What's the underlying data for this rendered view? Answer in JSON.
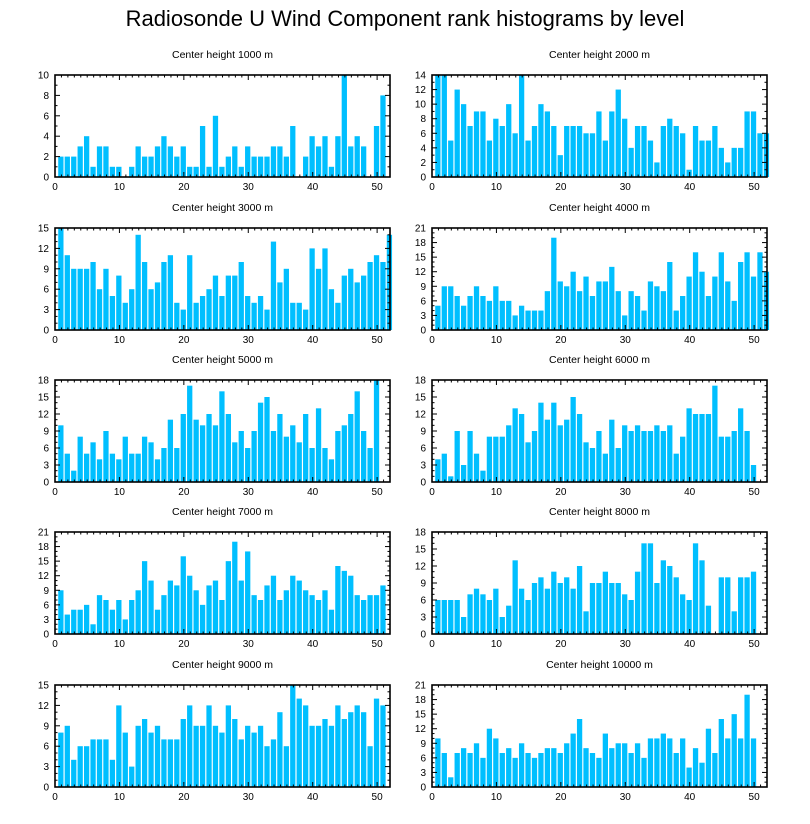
{
  "title": "Radiosonde U Wind Component rank histograms by level",
  "colors": {
    "bar": "#00bfff",
    "bar_stroke": "#ffffff",
    "axis": "#000000"
  },
  "chart_data": [
    {
      "type": "bar",
      "title": "Center height 1000 m",
      "x_start": 1,
      "xlim": [
        0,
        52
      ],
      "ylim": [
        0,
        10
      ],
      "xticks": [
        0,
        10,
        20,
        30,
        40,
        50
      ],
      "yticks": [
        0,
        2,
        4,
        6,
        8,
        10
      ],
      "values": [
        2,
        2,
        2,
        3,
        4,
        1,
        3,
        3,
        1,
        1,
        0,
        1,
        3,
        2,
        2,
        3,
        4,
        3,
        2,
        3,
        1,
        1,
        5,
        1,
        6,
        1,
        2,
        3,
        1,
        3,
        2,
        2,
        2,
        3,
        3,
        2,
        5,
        0,
        2,
        4,
        3,
        4,
        1,
        4,
        10,
        3,
        4,
        3,
        0,
        5,
        8
      ]
    },
    {
      "type": "bar",
      "title": "Center height 2000 m",
      "x_start": 1,
      "xlim": [
        0,
        52
      ],
      "ylim": [
        0,
        14
      ],
      "xticks": [
        0,
        10,
        20,
        30,
        40,
        50
      ],
      "yticks": [
        0,
        2,
        4,
        6,
        8,
        10,
        12,
        14
      ],
      "values": [
        14,
        14,
        5,
        12,
        10,
        7,
        9,
        9,
        5,
        8,
        7,
        10,
        6,
        14,
        5,
        7,
        10,
        9,
        7,
        3,
        7,
        7,
        7,
        6,
        6,
        9,
        5,
        9,
        12,
        8,
        4,
        7,
        7,
        5,
        2,
        7,
        8,
        7,
        6,
        1,
        7,
        5,
        5,
        7,
        4,
        2,
        4,
        4,
        9,
        9,
        6,
        6
      ]
    },
    {
      "type": "bar",
      "title": "Center height 3000 m",
      "x_start": 1,
      "xlim": [
        0,
        52
      ],
      "ylim": [
        0,
        15
      ],
      "xticks": [
        0,
        10,
        20,
        30,
        40,
        50
      ],
      "yticks": [
        0,
        3,
        6,
        9,
        12,
        15
      ],
      "values": [
        15,
        11,
        9,
        9,
        9,
        10,
        6,
        9,
        5,
        8,
        4,
        6,
        14,
        10,
        6,
        7,
        10,
        11,
        4,
        3,
        11,
        4,
        5,
        6,
        8,
        5,
        8,
        8,
        10,
        5,
        4,
        5,
        3,
        13,
        7,
        9,
        4,
        4,
        3,
        12,
        9,
        12,
        6,
        4,
        8,
        9,
        7,
        8,
        10,
        11,
        10,
        14
      ]
    },
    {
      "type": "bar",
      "title": "Center height 4000 m",
      "x_start": 1,
      "xlim": [
        0,
        52
      ],
      "ylim": [
        0,
        21
      ],
      "xticks": [
        0,
        10,
        20,
        30,
        40,
        50
      ],
      "yticks": [
        0,
        3,
        6,
        9,
        12,
        15,
        18,
        21
      ],
      "values": [
        5,
        9,
        9,
        7,
        5,
        7,
        9,
        7,
        6,
        9,
        6,
        6,
        3,
        5,
        4,
        4,
        4,
        8,
        19,
        10,
        9,
        12,
        8,
        11,
        7,
        10,
        10,
        13,
        8,
        3,
        8,
        7,
        4,
        10,
        9,
        8,
        14,
        4,
        7,
        11,
        16,
        12,
        7,
        11,
        16,
        10,
        6,
        14,
        16,
        11,
        16,
        12
      ]
    },
    {
      "type": "bar",
      "title": "Center height 5000 m",
      "x_start": 1,
      "xlim": [
        0,
        52
      ],
      "ylim": [
        0,
        18
      ],
      "xticks": [
        0,
        10,
        20,
        30,
        40,
        50
      ],
      "yticks": [
        0,
        3,
        6,
        9,
        12,
        15,
        18
      ],
      "values": [
        10,
        5,
        2,
        8,
        5,
        7,
        4,
        9,
        5,
        4,
        8,
        5,
        5,
        8,
        7,
        4,
        6,
        11,
        6,
        12,
        17,
        11,
        10,
        12,
        10,
        16,
        12,
        7,
        9,
        6,
        9,
        14,
        15,
        9,
        12,
        8,
        10,
        7,
        12,
        6,
        13,
        6,
        4,
        9,
        10,
        12,
        16,
        9,
        6,
        18
      ]
    },
    {
      "type": "bar",
      "title": "Center height 6000 m",
      "x_start": 1,
      "xlim": [
        0,
        52
      ],
      "ylim": [
        0,
        18
      ],
      "xticks": [
        0,
        10,
        20,
        30,
        40,
        50
      ],
      "yticks": [
        0,
        3,
        6,
        9,
        12,
        15,
        18
      ],
      "values": [
        4,
        5,
        1,
        9,
        3,
        9,
        5,
        2,
        8,
        8,
        8,
        10,
        13,
        12,
        7,
        9,
        14,
        11,
        14,
        10,
        11,
        15,
        12,
        7,
        6,
        9,
        5,
        11,
        6,
        10,
        9,
        10,
        9,
        9,
        10,
        9,
        10,
        5,
        8,
        13,
        12,
        12,
        12,
        17,
        8,
        8,
        9,
        13,
        9,
        3
      ]
    },
    {
      "type": "bar",
      "title": "Center height 7000 m",
      "x_start": 1,
      "xlim": [
        0,
        52
      ],
      "ylim": [
        0,
        21
      ],
      "xticks": [
        0,
        10,
        20,
        30,
        40,
        50
      ],
      "yticks": [
        0,
        3,
        6,
        9,
        12,
        15,
        18,
        21
      ],
      "values": [
        9,
        4,
        5,
        5,
        6,
        2,
        8,
        7,
        5,
        7,
        3,
        7,
        9,
        15,
        11,
        5,
        8,
        11,
        10,
        16,
        12,
        9,
        6,
        10,
        11,
        7,
        15,
        19,
        11,
        17,
        8,
        7,
        10,
        12,
        7,
        9,
        12,
        11,
        9,
        8,
        7,
        9,
        5,
        14,
        13,
        12,
        8,
        7,
        8,
        8,
        10
      ]
    },
    {
      "type": "bar",
      "title": "Center height 8000 m",
      "x_start": 1,
      "xlim": [
        0,
        52
      ],
      "ylim": [
        0,
        18
      ],
      "xticks": [
        0,
        10,
        20,
        30,
        40,
        50
      ],
      "yticks": [
        0,
        3,
        6,
        9,
        12,
        15,
        18
      ],
      "values": [
        6,
        6,
        6,
        6,
        3,
        7,
        8,
        7,
        6,
        8,
        3,
        5,
        13,
        8,
        6,
        9,
        10,
        8,
        11,
        9,
        10,
        8,
        12,
        4,
        9,
        9,
        11,
        9,
        9,
        7,
        6,
        11,
        16,
        16,
        9,
        13,
        12,
        10,
        7,
        6,
        16,
        13,
        5,
        0,
        10,
        10,
        4,
        10,
        10,
        11
      ]
    },
    {
      "type": "bar",
      "title": "Center height 9000 m",
      "x_start": 1,
      "xlim": [
        0,
        52
      ],
      "ylim": [
        0,
        15
      ],
      "xticks": [
        0,
        10,
        20,
        30,
        40,
        50
      ],
      "yticks": [
        0,
        3,
        6,
        9,
        12,
        15
      ],
      "values": [
        8,
        9,
        4,
        6,
        6,
        7,
        7,
        7,
        4,
        12,
        8,
        3,
        9,
        10,
        8,
        9,
        7,
        7,
        7,
        10,
        12,
        9,
        9,
        12,
        9,
        8,
        12,
        10,
        7,
        9,
        8,
        9,
        6,
        7,
        11,
        6,
        15,
        13,
        12,
        9,
        9,
        10,
        9,
        12,
        10,
        11,
        12,
        11,
        6,
        13,
        12
      ]
    },
    {
      "type": "bar",
      "title": "Center height 10000 m",
      "x_start": 1,
      "xlim": [
        0,
        52
      ],
      "ylim": [
        0,
        21
      ],
      "xticks": [
        0,
        10,
        20,
        30,
        40,
        50
      ],
      "yticks": [
        0,
        3,
        6,
        9,
        12,
        15,
        18,
        21
      ],
      "values": [
        10,
        7,
        2,
        7,
        8,
        7,
        9,
        6,
        12,
        10,
        7,
        8,
        6,
        9,
        7,
        6,
        7,
        8,
        8,
        7,
        9,
        11,
        14,
        8,
        7,
        6,
        11,
        8,
        9,
        9,
        7,
        9,
        6,
        10,
        10,
        11,
        10,
        7,
        10,
        4,
        8,
        5,
        12,
        7,
        14,
        10,
        15,
        10,
        19,
        10
      ]
    }
  ]
}
